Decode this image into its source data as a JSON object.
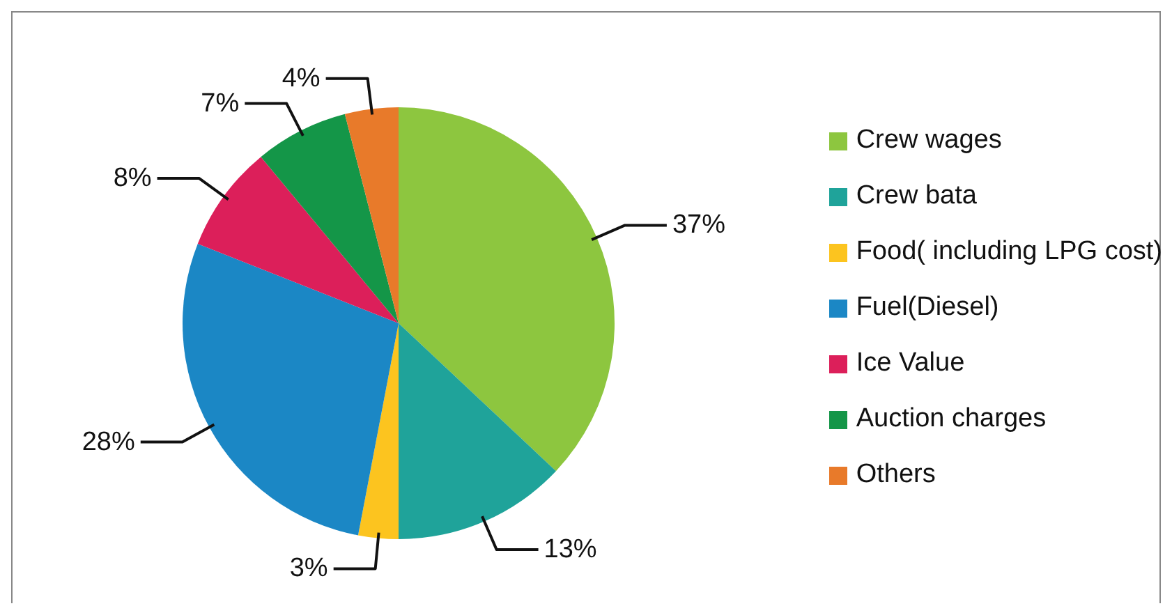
{
  "chart_data": {
    "type": "pie",
    "categories": [
      "Crew wages",
      "Crew bata",
      "Food( including LPG cost)",
      "Fuel(Diesel)",
      "Ice Value",
      "Auction charges",
      "Others"
    ],
    "values": [
      37,
      13,
      3,
      28,
      8,
      7,
      4
    ],
    "value_labels": [
      "37%",
      "13%",
      "3%",
      "28%",
      "8%",
      "7%",
      "4%"
    ],
    "colors": [
      "#8dc63f",
      "#1fa39a",
      "#fcc41f",
      "#1b87c5",
      "#dc1f5a",
      "#149648",
      "#e87a2a"
    ],
    "legend": "right"
  }
}
